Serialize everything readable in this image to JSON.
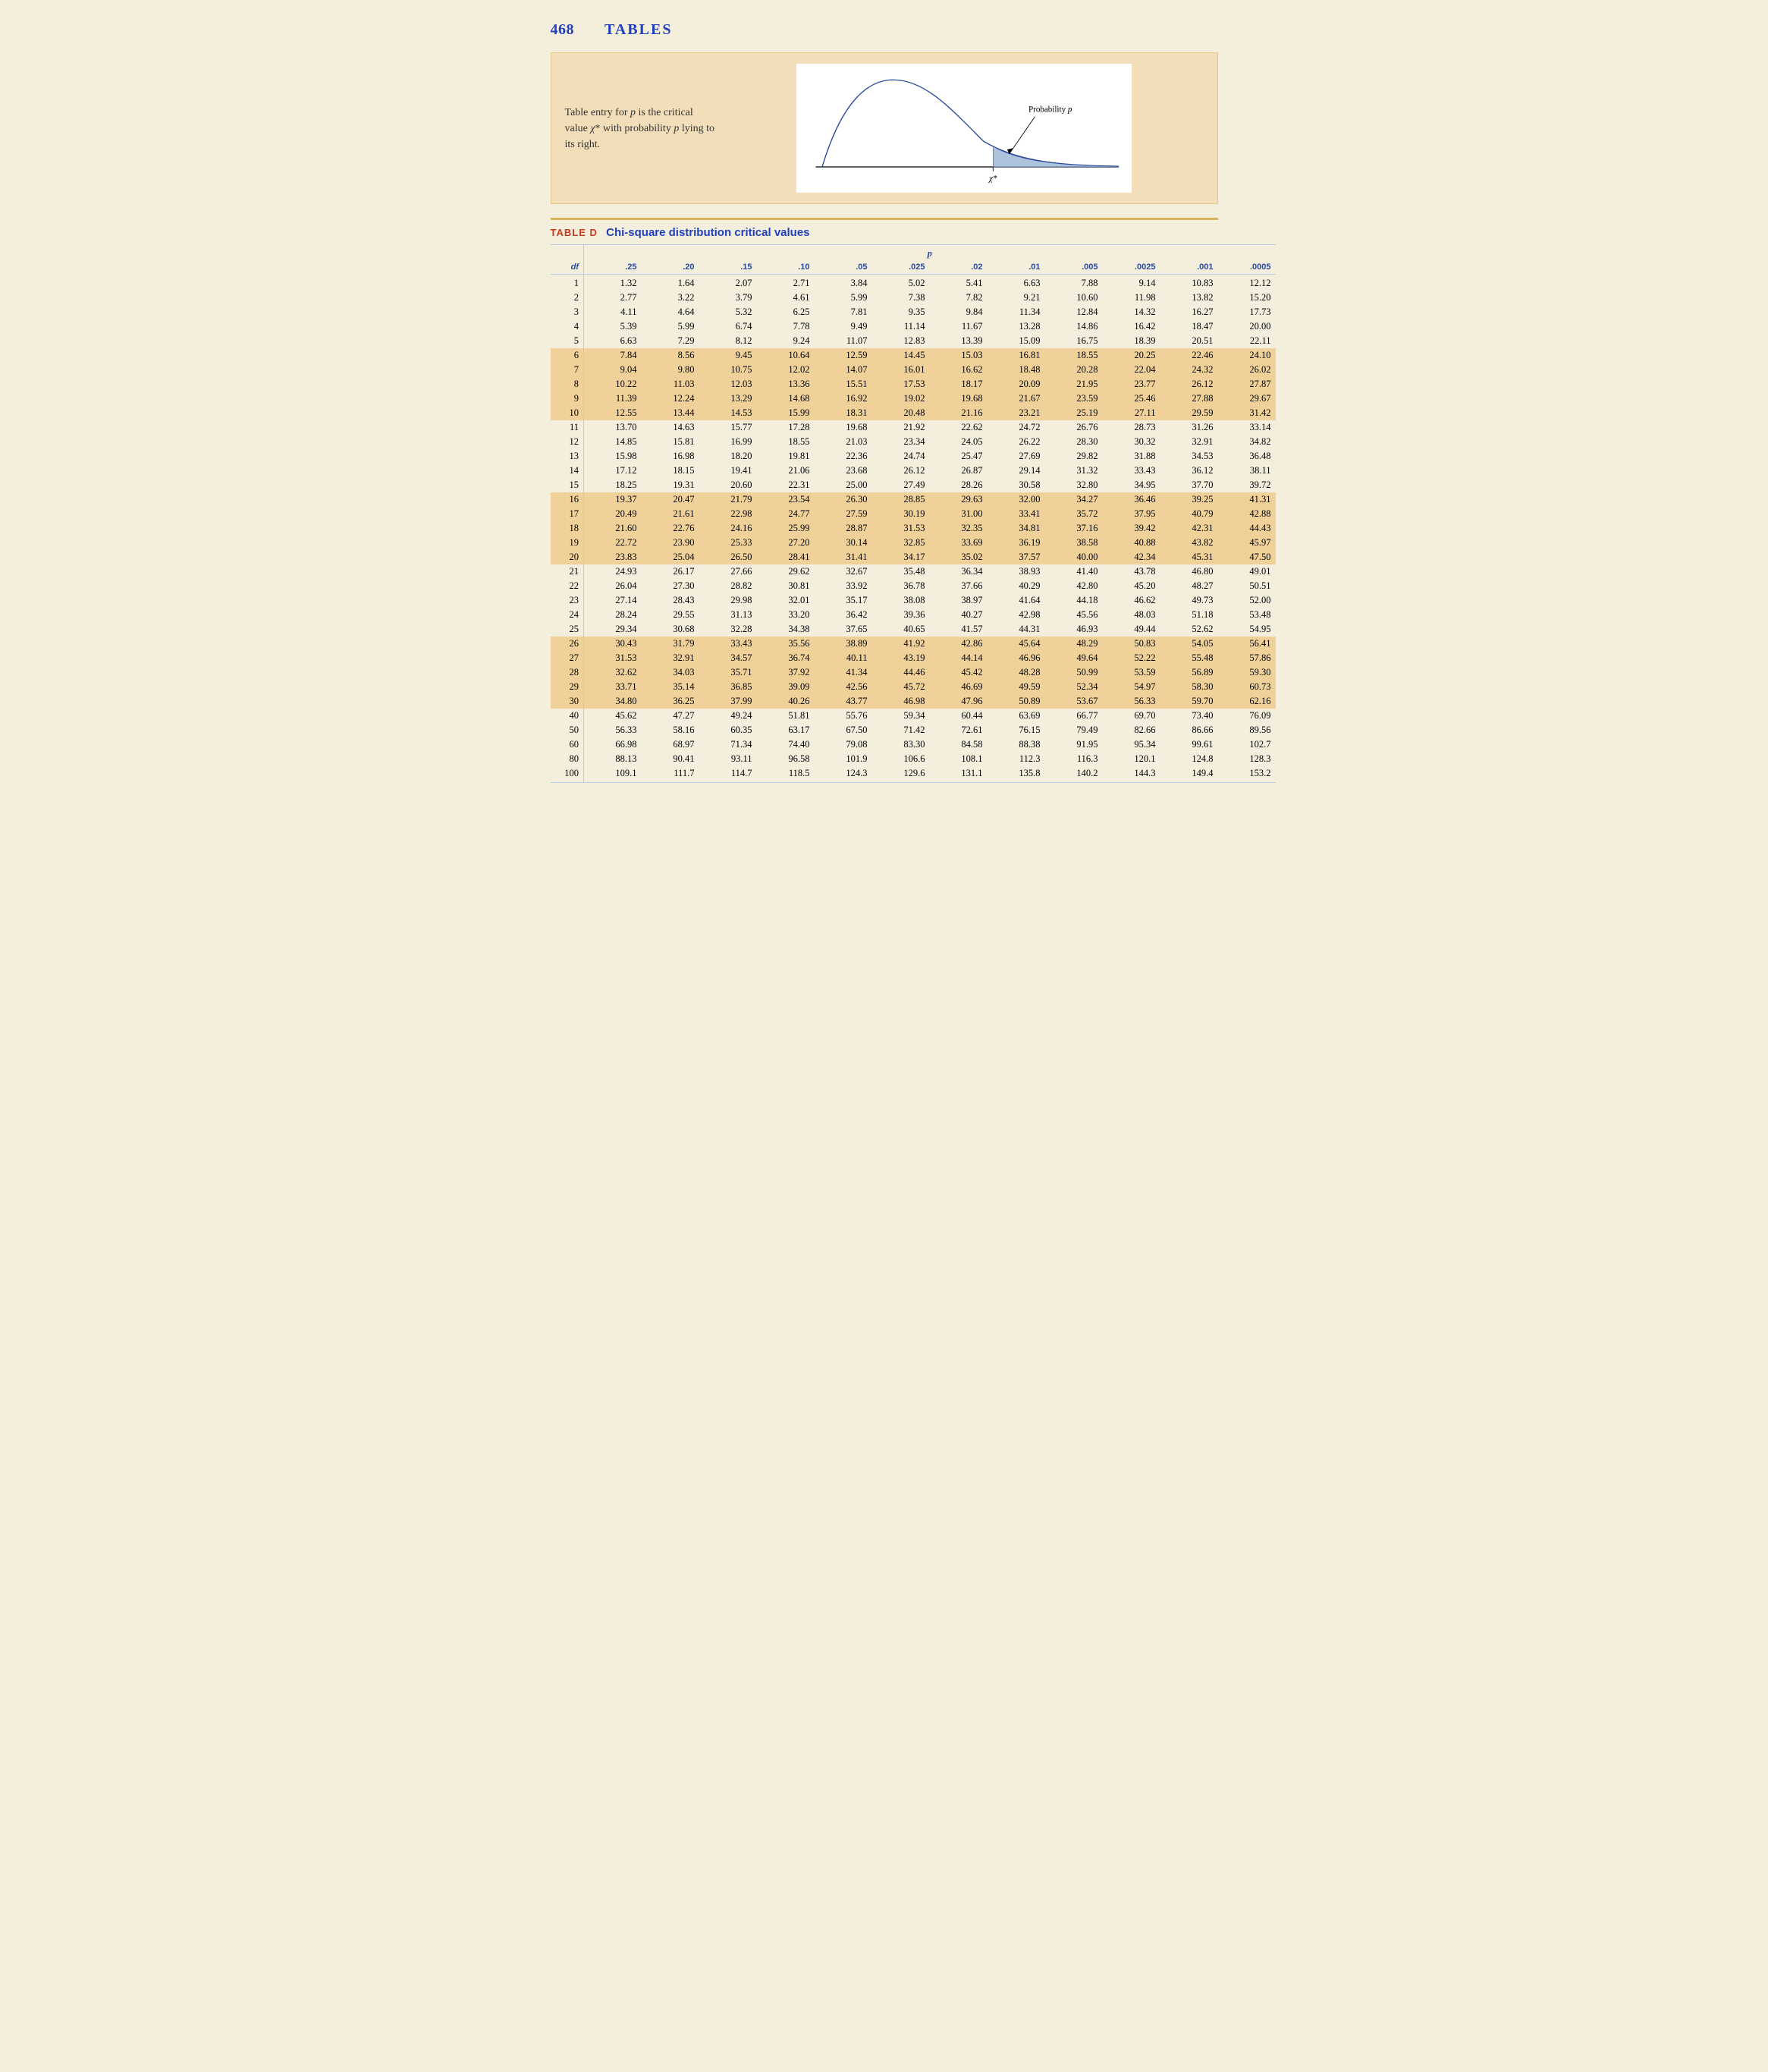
{
  "page_number": "468",
  "header_title": "TABLES",
  "caption_html": "Table entry for <em>p</em> is the critical value <span class='chi-sup'>χ</span>* with probability <em>p</em> lying to its right.",
  "curve": {
    "prob_label": "Probability p",
    "x_label": "χ*",
    "curve_stroke": "#2b4a9c",
    "curve_fill_tail": "#9fb7d6",
    "axis_color": "#000000",
    "bg_top": "#f9ecc9",
    "bg_bottom": "#ffffff"
  },
  "table": {
    "label": "TABLE D",
    "desc": "Chi-square distribution critical values",
    "p_header": "p",
    "band_color": "#f1d19a",
    "columns": [
      "df",
      ".25",
      ".20",
      ".15",
      ".10",
      ".05",
      ".025",
      ".02",
      ".01",
      ".005",
      ".0025",
      ".001",
      ".0005"
    ],
    "bands": [
      [
        6,
        10
      ],
      [
        16,
        20
      ],
      [
        26,
        30
      ]
    ],
    "rows": [
      [
        "1",
        "1.32",
        "1.64",
        "2.07",
        "2.71",
        "3.84",
        "5.02",
        "5.41",
        "6.63",
        "7.88",
        "9.14",
        "10.83",
        "12.12"
      ],
      [
        "2",
        "2.77",
        "3.22",
        "3.79",
        "4.61",
        "5.99",
        "7.38",
        "7.82",
        "9.21",
        "10.60",
        "11.98",
        "13.82",
        "15.20"
      ],
      [
        "3",
        "4.11",
        "4.64",
        "5.32",
        "6.25",
        "7.81",
        "9.35",
        "9.84",
        "11.34",
        "12.84",
        "14.32",
        "16.27",
        "17.73"
      ],
      [
        "4",
        "5.39",
        "5.99",
        "6.74",
        "7.78",
        "9.49",
        "11.14",
        "11.67",
        "13.28",
        "14.86",
        "16.42",
        "18.47",
        "20.00"
      ],
      [
        "5",
        "6.63",
        "7.29",
        "8.12",
        "9.24",
        "11.07",
        "12.83",
        "13.39",
        "15.09",
        "16.75",
        "18.39",
        "20.51",
        "22.11"
      ],
      [
        "6",
        "7.84",
        "8.56",
        "9.45",
        "10.64",
        "12.59",
        "14.45",
        "15.03",
        "16.81",
        "18.55",
        "20.25",
        "22.46",
        "24.10"
      ],
      [
        "7",
        "9.04",
        "9.80",
        "10.75",
        "12.02",
        "14.07",
        "16.01",
        "16.62",
        "18.48",
        "20.28",
        "22.04",
        "24.32",
        "26.02"
      ],
      [
        "8",
        "10.22",
        "11.03",
        "12.03",
        "13.36",
        "15.51",
        "17.53",
        "18.17",
        "20.09",
        "21.95",
        "23.77",
        "26.12",
        "27.87"
      ],
      [
        "9",
        "11.39",
        "12.24",
        "13.29",
        "14.68",
        "16.92",
        "19.02",
        "19.68",
        "21.67",
        "23.59",
        "25.46",
        "27.88",
        "29.67"
      ],
      [
        "10",
        "12.55",
        "13.44",
        "14.53",
        "15.99",
        "18.31",
        "20.48",
        "21.16",
        "23.21",
        "25.19",
        "27.11",
        "29.59",
        "31.42"
      ],
      [
        "11",
        "13.70",
        "14.63",
        "15.77",
        "17.28",
        "19.68",
        "21.92",
        "22.62",
        "24.72",
        "26.76",
        "28.73",
        "31.26",
        "33.14"
      ],
      [
        "12",
        "14.85",
        "15.81",
        "16.99",
        "18.55",
        "21.03",
        "23.34",
        "24.05",
        "26.22",
        "28.30",
        "30.32",
        "32.91",
        "34.82"
      ],
      [
        "13",
        "15.98",
        "16.98",
        "18.20",
        "19.81",
        "22.36",
        "24.74",
        "25.47",
        "27.69",
        "29.82",
        "31.88",
        "34.53",
        "36.48"
      ],
      [
        "14",
        "17.12",
        "18.15",
        "19.41",
        "21.06",
        "23.68",
        "26.12",
        "26.87",
        "29.14",
        "31.32",
        "33.43",
        "36.12",
        "38.11"
      ],
      [
        "15",
        "18.25",
        "19.31",
        "20.60",
        "22.31",
        "25.00",
        "27.49",
        "28.26",
        "30.58",
        "32.80",
        "34.95",
        "37.70",
        "39.72"
      ],
      [
        "16",
        "19.37",
        "20.47",
        "21.79",
        "23.54",
        "26.30",
        "28.85",
        "29.63",
        "32.00",
        "34.27",
        "36.46",
        "39.25",
        "41.31"
      ],
      [
        "17",
        "20.49",
        "21.61",
        "22.98",
        "24.77",
        "27.59",
        "30.19",
        "31.00",
        "33.41",
        "35.72",
        "37.95",
        "40.79",
        "42.88"
      ],
      [
        "18",
        "21.60",
        "22.76",
        "24.16",
        "25.99",
        "28.87",
        "31.53",
        "32.35",
        "34.81",
        "37.16",
        "39.42",
        "42.31",
        "44.43"
      ],
      [
        "19",
        "22.72",
        "23.90",
        "25.33",
        "27.20",
        "30.14",
        "32.85",
        "33.69",
        "36.19",
        "38.58",
        "40.88",
        "43.82",
        "45.97"
      ],
      [
        "20",
        "23.83",
        "25.04",
        "26.50",
        "28.41",
        "31.41",
        "34.17",
        "35.02",
        "37.57",
        "40.00",
        "42.34",
        "45.31",
        "47.50"
      ],
      [
        "21",
        "24.93",
        "26.17",
        "27.66",
        "29.62",
        "32.67",
        "35.48",
        "36.34",
        "38.93",
        "41.40",
        "43.78",
        "46.80",
        "49.01"
      ],
      [
        "22",
        "26.04",
        "27.30",
        "28.82",
        "30.81",
        "33.92",
        "36.78",
        "37.66",
        "40.29",
        "42.80",
        "45.20",
        "48.27",
        "50.51"
      ],
      [
        "23",
        "27.14",
        "28.43",
        "29.98",
        "32.01",
        "35.17",
        "38.08",
        "38.97",
        "41.64",
        "44.18",
        "46.62",
        "49.73",
        "52.00"
      ],
      [
        "24",
        "28.24",
        "29.55",
        "31.13",
        "33.20",
        "36.42",
        "39.36",
        "40.27",
        "42.98",
        "45.56",
        "48.03",
        "51.18",
        "53.48"
      ],
      [
        "25",
        "29.34",
        "30.68",
        "32.28",
        "34.38",
        "37.65",
        "40.65",
        "41.57",
        "44.31",
        "46.93",
        "49.44",
        "52.62",
        "54.95"
      ],
      [
        "26",
        "30.43",
        "31.79",
        "33.43",
        "35.56",
        "38.89",
        "41.92",
        "42.86",
        "45.64",
        "48.29",
        "50.83",
        "54.05",
        "56.41"
      ],
      [
        "27",
        "31.53",
        "32.91",
        "34.57",
        "36.74",
        "40.11",
        "43.19",
        "44.14",
        "46.96",
        "49.64",
        "52.22",
        "55.48",
        "57.86"
      ],
      [
        "28",
        "32.62",
        "34.03",
        "35.71",
        "37.92",
        "41.34",
        "44.46",
        "45.42",
        "48.28",
        "50.99",
        "53.59",
        "56.89",
        "59.30"
      ],
      [
        "29",
        "33.71",
        "35.14",
        "36.85",
        "39.09",
        "42.56",
        "45.72",
        "46.69",
        "49.59",
        "52.34",
        "54.97",
        "58.30",
        "60.73"
      ],
      [
        "30",
        "34.80",
        "36.25",
        "37.99",
        "40.26",
        "43.77",
        "46.98",
        "47.96",
        "50.89",
        "53.67",
        "56.33",
        "59.70",
        "62.16"
      ],
      [
        "40",
        "45.62",
        "47.27",
        "49.24",
        "51.81",
        "55.76",
        "59.34",
        "60.44",
        "63.69",
        "66.77",
        "69.70",
        "73.40",
        "76.09"
      ],
      [
        "50",
        "56.33",
        "58.16",
        "60.35",
        "63.17",
        "67.50",
        "71.42",
        "72.61",
        "76.15",
        "79.49",
        "82.66",
        "86.66",
        "89.56"
      ],
      [
        "60",
        "66.98",
        "68.97",
        "71.34",
        "74.40",
        "79.08",
        "83.30",
        "84.58",
        "88.38",
        "91.95",
        "95.34",
        "99.61",
        "102.7"
      ],
      [
        "80",
        "88.13",
        "90.41",
        "93.11",
        "96.58",
        "101.9",
        "106.6",
        "108.1",
        "112.3",
        "116.3",
        "120.1",
        "124.8",
        "128.3"
      ],
      [
        "100",
        "109.1",
        "111.7",
        "114.7",
        "118.5",
        "124.3",
        "129.6",
        "131.1",
        "135.8",
        "140.2",
        "144.3",
        "149.4",
        "153.2"
      ]
    ]
  }
}
